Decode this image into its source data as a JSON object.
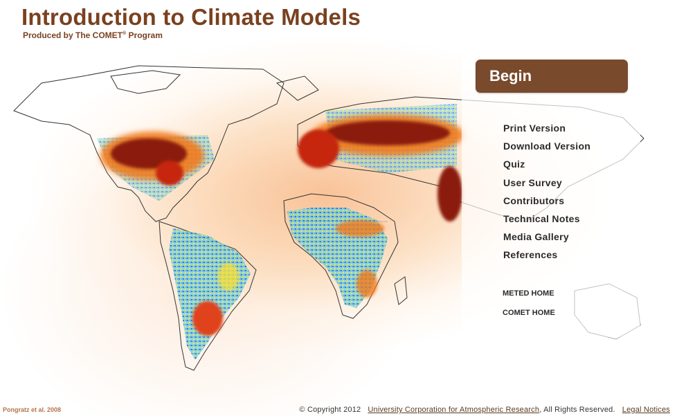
{
  "header": {
    "title": "Introduction to Climate Models",
    "subtitle_prefix": "Produced by The COMET",
    "subtitle_reg": "®",
    "subtitle_suffix": " Program"
  },
  "begin_button": {
    "label": "Begin"
  },
  "menu": {
    "items": [
      {
        "label": "Print Version"
      },
      {
        "label": "Download Version"
      },
      {
        "label": "Quiz"
      },
      {
        "label": "User Survey"
      },
      {
        "label": "Contributors"
      },
      {
        "label": "Technical Notes"
      },
      {
        "label": "Media Gallery"
      },
      {
        "label": "References"
      }
    ]
  },
  "home_links": {
    "meted": "METED HOME",
    "comet": "COMET HOME"
  },
  "image_credit": "Pongratz et al. 2008",
  "footer": {
    "copyright": "© Copyright 2012",
    "ucar_link": "University Corporation for Atmospheric Research",
    "rights": ", All Rights Reserved.",
    "legal_link": "Legal Notices"
  },
  "colors": {
    "brand_brown": "#7a4120",
    "button_brown": "#7a4a2c",
    "map_hot": "#8b1a0a",
    "map_warm": "#f07a1a",
    "map_mid": "#f6e03a",
    "map_cool": "#5bc8e8",
    "map_cold": "#2d5fbf"
  }
}
